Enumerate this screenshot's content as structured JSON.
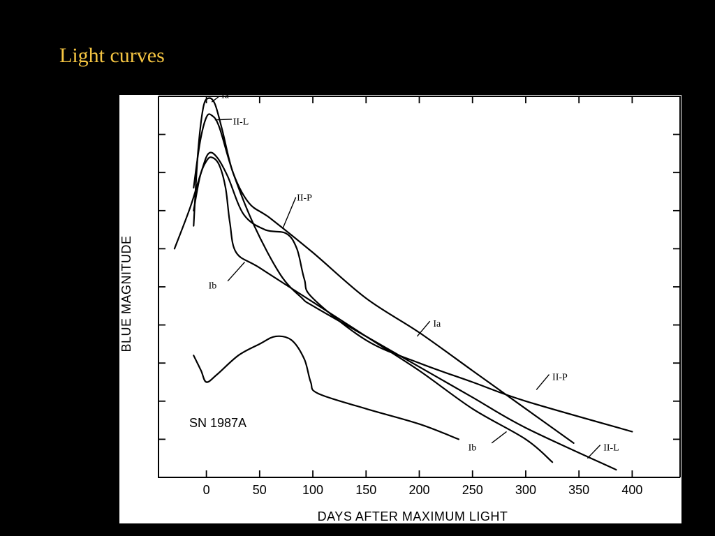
{
  "page": {
    "title": "Light curves",
    "title_color": "#f5c542",
    "background": "#000000",
    "figure_background": "#ffffff"
  },
  "chart_data": {
    "type": "line",
    "title": "",
    "xlabel": "DAYS AFTER MAXIMUM LIGHT",
    "ylabel": "BLUE MAGNITUDE",
    "xlim": [
      -45,
      445
    ],
    "ylim": [
      10,
      0
    ],
    "x_ticks": [
      0,
      50,
      100,
      150,
      200,
      250,
      300,
      350,
      400
    ],
    "y_tick_count": 10,
    "y_tick_labels_shown": false,
    "annotation": "SN 1987A",
    "grid": false,
    "series": [
      {
        "name": "Ia",
        "label_positions": [
          "peak",
          "tail"
        ],
        "points": [
          [
            -12,
            3.4
          ],
          [
            -8,
            1.5
          ],
          [
            -3,
            0.3
          ],
          [
            2,
            0.05
          ],
          [
            8,
            0.2
          ],
          [
            15,
            0.9
          ],
          [
            25,
            2.0
          ],
          [
            40,
            2.8
          ],
          [
            60,
            3.2
          ],
          [
            100,
            4.1
          ],
          [
            150,
            5.3
          ],
          [
            200,
            6.2
          ],
          [
            250,
            7.2
          ],
          [
            300,
            8.2
          ],
          [
            345,
            9.1
          ]
        ]
      },
      {
        "name": "II-L",
        "label_positions": [
          "peak",
          "tail"
        ],
        "points": [
          [
            -12,
            2.4
          ],
          [
            -6,
            1.2
          ],
          [
            0,
            0.55
          ],
          [
            5,
            0.5
          ],
          [
            12,
            0.8
          ],
          [
            25,
            2.0
          ],
          [
            45,
            3.4
          ],
          [
            70,
            4.7
          ],
          [
            90,
            5.3
          ],
          [
            100,
            5.5
          ],
          [
            150,
            6.3
          ],
          [
            200,
            7.1
          ],
          [
            250,
            7.9
          ],
          [
            300,
            8.7
          ],
          [
            385,
            9.8
          ]
        ]
      },
      {
        "name": "II-P",
        "label_positions": [
          "plateau",
          "tail"
        ],
        "points": [
          [
            -30,
            4.0
          ],
          [
            -15,
            2.9
          ],
          [
            -5,
            2.0
          ],
          [
            2,
            1.5
          ],
          [
            10,
            1.6
          ],
          [
            20,
            2.1
          ],
          [
            35,
            3.1
          ],
          [
            55,
            3.5
          ],
          [
            75,
            3.6
          ],
          [
            85,
            4.0
          ],
          [
            92,
            4.8
          ],
          [
            100,
            5.3
          ],
          [
            150,
            6.4
          ],
          [
            200,
            7.0
          ],
          [
            250,
            7.5
          ],
          [
            300,
            8.0
          ],
          [
            400,
            8.8
          ]
        ]
      },
      {
        "name": "Ib",
        "label_positions": [
          "early",
          "tail"
        ],
        "points": [
          [
            -12,
            3.0
          ],
          [
            -6,
            2.1
          ],
          [
            0,
            1.7
          ],
          [
            5,
            1.6
          ],
          [
            12,
            1.8
          ],
          [
            18,
            2.4
          ],
          [
            22,
            3.3
          ],
          [
            28,
            4.1
          ],
          [
            50,
            4.5
          ],
          [
            100,
            5.4
          ],
          [
            150,
            6.3
          ],
          [
            200,
            7.2
          ],
          [
            250,
            8.2
          ],
          [
            300,
            9.0
          ],
          [
            325,
            9.6
          ]
        ]
      },
      {
        "name": "SN 1987A",
        "label_positions": [
          "annotation"
        ],
        "points": [
          [
            -12,
            6.8
          ],
          [
            -5,
            7.2
          ],
          [
            0,
            7.5
          ],
          [
            10,
            7.3
          ],
          [
            30,
            6.8
          ],
          [
            50,
            6.5
          ],
          [
            65,
            6.3
          ],
          [
            80,
            6.4
          ],
          [
            92,
            6.9
          ],
          [
            98,
            7.5
          ],
          [
            105,
            7.8
          ],
          [
            150,
            8.2
          ],
          [
            200,
            8.6
          ],
          [
            237,
            9.0
          ]
        ]
      }
    ],
    "labels": {
      "ia": "Ia",
      "iil": "II-L",
      "iip": "II-P",
      "ib": "Ib"
    }
  }
}
